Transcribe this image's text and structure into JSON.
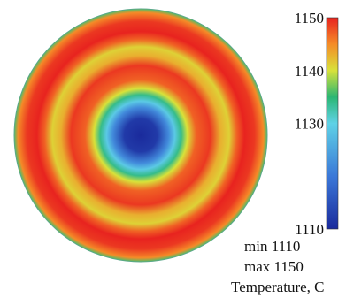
{
  "chart_data": {
    "type": "heatmap",
    "subtype": "radial-contour",
    "description_of_field": "Axisymmetric temperature field on a circular disk, lowest at the center, peaks in two red rings",
    "colormap": {
      "name": "jet",
      "stops": [
        {
          "value": 1110,
          "color": "#1a2a9c"
        },
        {
          "value": 1120,
          "color": "#3b78d8"
        },
        {
          "value": 1130,
          "color": "#5fd2e6"
        },
        {
          "value": 1135,
          "color": "#2bb673"
        },
        {
          "value": 1140,
          "color": "#d8e23a"
        },
        {
          "value": 1145,
          "color": "#f58b28"
        },
        {
          "value": 1150,
          "color": "#e8231f"
        }
      ]
    },
    "radial_profile": {
      "r_fraction": [
        0.0,
        0.13,
        0.22,
        0.27,
        0.32,
        0.37,
        0.44,
        0.55,
        0.63,
        0.7,
        0.76,
        0.82,
        0.9,
        0.97,
        1.0
      ],
      "value": [
        1110,
        1112,
        1122,
        1129,
        1134,
        1140,
        1147,
        1149,
        1143,
        1141,
        1147,
        1150,
        1149,
        1145,
        1136
      ]
    },
    "colorbar": {
      "ticks": [
        1150,
        1140,
        1130,
        1110
      ],
      "range": [
        1110,
        1150
      ]
    },
    "annotations": {
      "min_label": "min 1110",
      "max_label": "max 1150",
      "quantity_label": "Temperature, C"
    }
  }
}
